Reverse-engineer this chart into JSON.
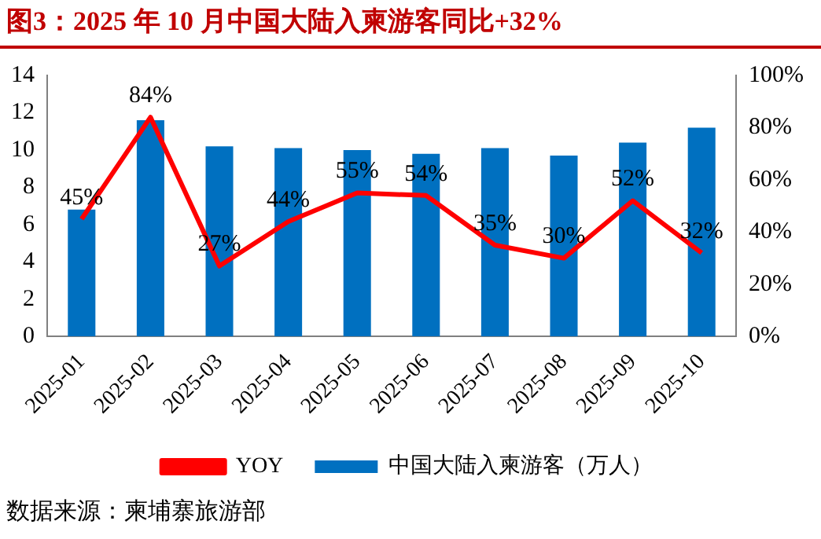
{
  "chart_data": {
    "type": "bar",
    "title": "图3：2025 年 10 月中国大陆入柬游客同比+32%",
    "categories": [
      "2025-01",
      "2025-02",
      "2025-03",
      "2025-04",
      "2025-05",
      "2025-06",
      "2025-07",
      "2025-08",
      "2025-09",
      "2025-10"
    ],
    "series": [
      {
        "name": "中国大陆入柬游客（万人）",
        "color": "#0070c0",
        "values": [
          6.8,
          11.6,
          10.2,
          10.1,
          10.0,
          9.8,
          10.1,
          9.7,
          10.4,
          11.2
        ]
      },
      {
        "name": "YOY",
        "type": "line",
        "axis": "y2",
        "color": "#ff0000",
        "values": [
          45,
          84,
          27,
          44,
          55,
          54,
          35,
          30,
          52,
          32
        ],
        "value_labels": [
          "45%",
          "84%",
          "27%",
          "44%",
          "55%",
          "54%",
          "35%",
          "30%",
          "52%",
          "32%"
        ]
      }
    ],
    "ylim": [
      0,
      14
    ],
    "yticks": [
      0,
      2,
      4,
      6,
      8,
      10,
      12,
      14
    ],
    "y2lim": [
      0,
      100
    ],
    "y2ticks": [
      {
        "value": 0,
        "label": "0%"
      },
      {
        "value": 20,
        "label": "20%"
      },
      {
        "value": 40,
        "label": "40%"
      },
      {
        "value": 60,
        "label": "60%"
      },
      {
        "value": 80,
        "label": "80%"
      },
      {
        "value": 100,
        "label": "100%"
      }
    ],
    "grid": false,
    "legend": "bottom",
    "marker": "none",
    "annotations": [
      "数据来源：柬埔寨旅游部"
    ]
  }
}
